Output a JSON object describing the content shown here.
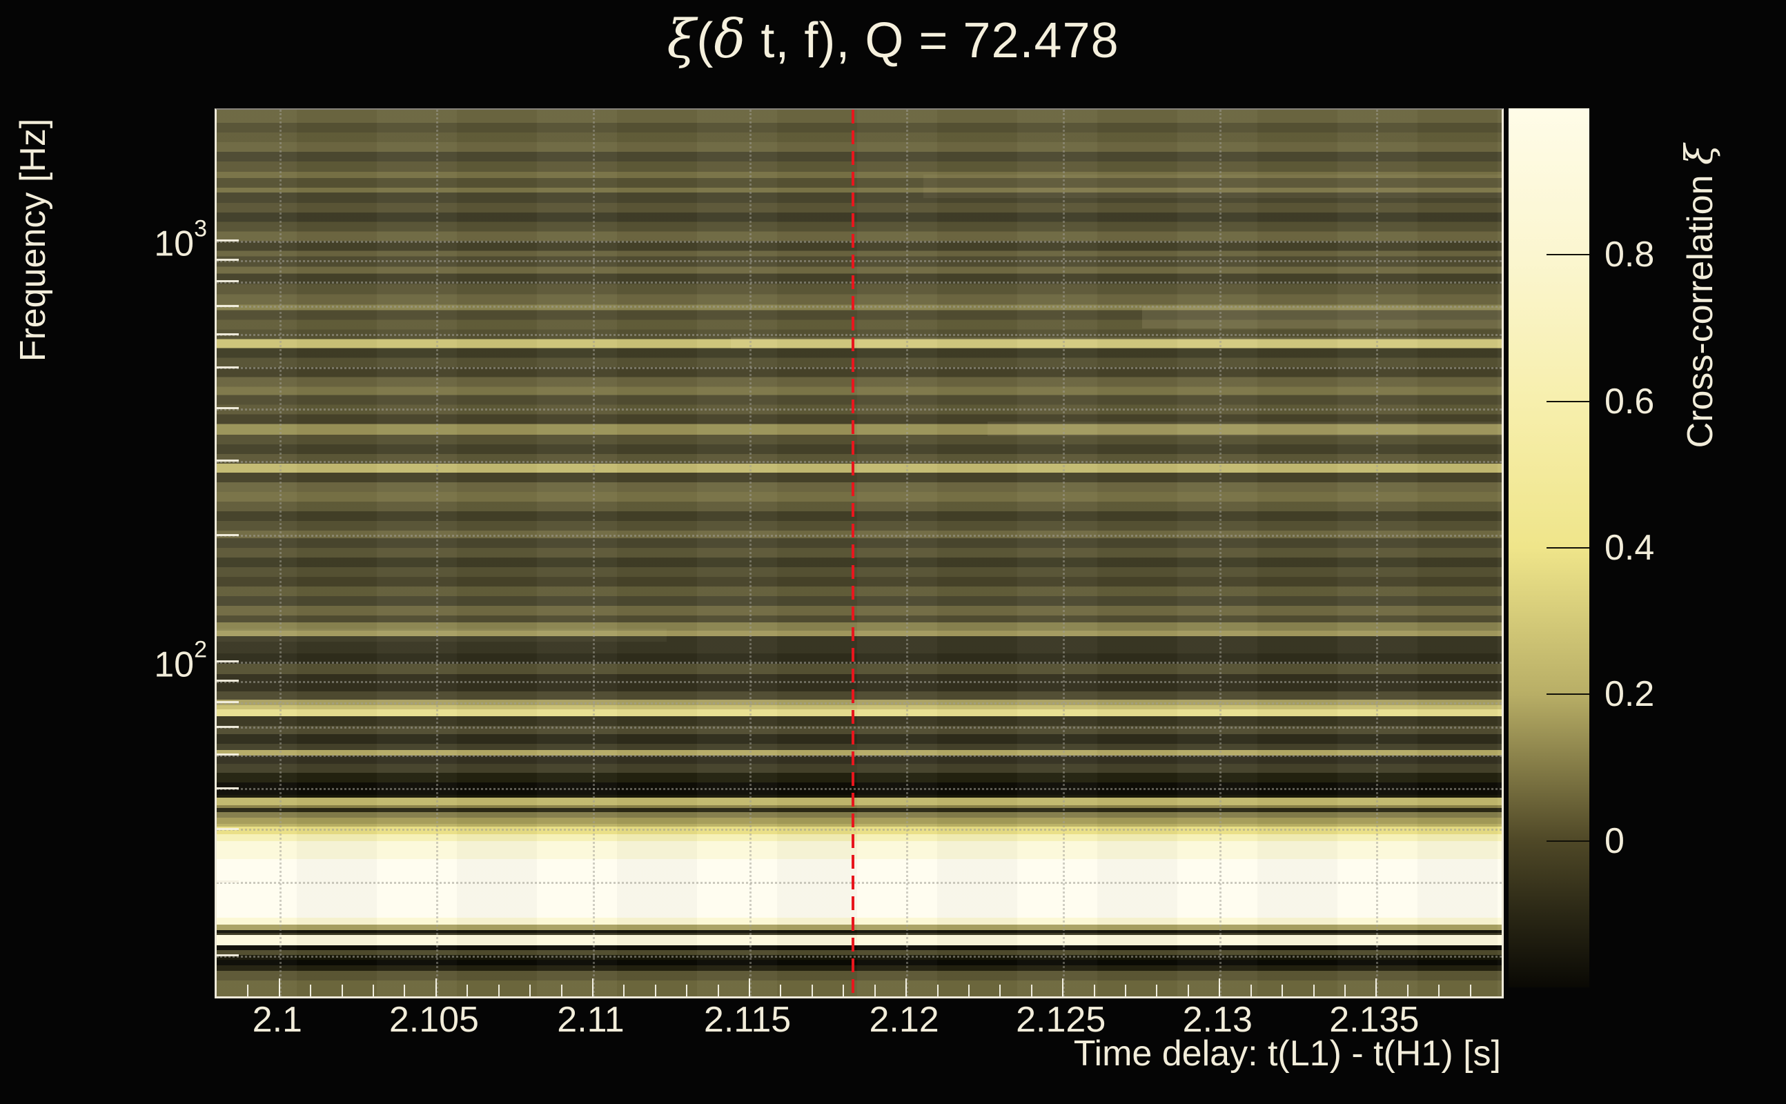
{
  "title": {
    "text": "ξ(δ t, f), Q = 72.478",
    "parts": [
      {
        "text": "ξ",
        "greek": true
      },
      {
        "text": "(",
        "greek": false
      },
      {
        "text": "δ",
        "greek": true
      },
      {
        "text": " t, f), Q = 72.478",
        "greek": false
      }
    ]
  },
  "y_axis": {
    "label": "Frequency [Hz]",
    "scale": "log",
    "ticks": [
      {
        "base": "10",
        "exp": "3",
        "value_hz": 1000
      },
      {
        "base": "10",
        "exp": "2",
        "value_hz": 100
      }
    ]
  },
  "x_axis": {
    "label": "Time delay: t(L1) - t(H1) [s]",
    "ticks": [
      {
        "label": "2.1",
        "value_s": 2.1
      },
      {
        "label": "2.105",
        "value_s": 2.105
      },
      {
        "label": "2.11",
        "value_s": 2.11
      },
      {
        "label": "2.115",
        "value_s": 2.115
      },
      {
        "label": "2.12",
        "value_s": 2.12
      },
      {
        "label": "2.125",
        "value_s": 2.125
      },
      {
        "label": "2.13",
        "value_s": 2.13
      },
      {
        "label": "2.135",
        "value_s": 2.135
      }
    ]
  },
  "colorbar": {
    "label": "Cross-correlation ξ",
    "label_parts": [
      {
        "text": "Cross-correlation ",
        "greek": false
      },
      {
        "text": "ξ",
        "greek": true
      }
    ],
    "range": [
      -0.2,
      1.0
    ],
    "ticks": [
      {
        "label": "0.8",
        "value": 0.8
      },
      {
        "label": "0.6",
        "value": 0.6
      },
      {
        "label": "0.4",
        "value": 0.4
      },
      {
        "label": "0.2",
        "value": 0.2
      },
      {
        "label": "0",
        "value": 0.0
      }
    ],
    "stops": [
      {
        "value": 1.0,
        "color": "#fffce8"
      },
      {
        "value": 0.8,
        "color": "#fbf6d0"
      },
      {
        "value": 0.6,
        "color": "#f7efad"
      },
      {
        "value": 0.4,
        "color": "#efe58a"
      },
      {
        "value": 0.2,
        "color": "#b8ae66"
      },
      {
        "value": 0.0,
        "color": "#4f4827"
      },
      {
        "value": -0.1,
        "color": "#2a2715"
      },
      {
        "value": -0.2,
        "color": "#0a0904"
      }
    ]
  },
  "chart_data": {
    "type": "heatmap",
    "title": "ξ(δ t, f), Q = 72.478",
    "q_value": 72.478,
    "xlabel": "Time delay: t(L1) - t(H1) [s]",
    "ylabel": "Frequency [Hz]",
    "colorbar_label": "Cross-correlation ξ",
    "x_range_s": [
      2.098,
      2.139
    ],
    "x_tick_values_s": [
      2.1,
      2.105,
      2.11,
      2.115,
      2.12,
      2.125,
      2.13,
      2.135
    ],
    "x_minor_step_s": 0.001,
    "y_scale": "log",
    "y_range_hz": [
      16,
      2048
    ],
    "grid_frequencies_hz": [
      20,
      30,
      40,
      50,
      60,
      70,
      80,
      90,
      100,
      200,
      300,
      400,
      500,
      600,
      700,
      800,
      900,
      1000
    ],
    "colorbar_range": [
      -0.2,
      1.0
    ],
    "marker_line": {
      "x_s": 2.1183,
      "style": "dashed",
      "color": "#e8161d"
    },
    "description": "Cross-correlation xi of L1/H1 strain vs time delay and frequency; strong correlation (cream, xi~1) below ~40 Hz, bright horizontal lines near 550 Hz, 280 Hz and 76 Hz, dark anti-correlated bands near 50 Hz and 18-22 Hz; red dashed line marks best-fit time delay 2.1183 s.",
    "bands": [
      [
        0.0,
        "#6c6741"
      ],
      [
        0.0148,
        "#565233"
      ],
      [
        0.0256,
        "#635e3a"
      ],
      [
        0.0365,
        "#6e6842"
      ],
      [
        0.0474,
        "#4c4930"
      ],
      [
        0.0583,
        "#5f5a38"
      ],
      [
        0.0699,
        "#787246"
      ],
      [
        0.0769,
        "#565233"
      ],
      [
        0.0878,
        "#7b7548"
      ],
      [
        0.0932,
        "#4a472e"
      ],
      [
        0.1049,
        "#5b5636"
      ],
      [
        0.1158,
        "#403d28"
      ],
      [
        0.1266,
        "#565233"
      ],
      [
        0.1375,
        "#6e6842"
      ],
      [
        0.1484,
        "#454229"
      ],
      [
        0.1593,
        "#6b6540"
      ],
      [
        0.1655,
        "#514d31"
      ],
      [
        0.1772,
        "#716b43"
      ],
      [
        0.1849,
        "#454229"
      ],
      [
        0.1966,
        "#5d5837"
      ],
      [
        0.2082,
        "#6e6842"
      ],
      [
        0.2199,
        "#8a8450"
      ],
      [
        0.2261,
        "#514d31"
      ],
      [
        0.237,
        "#635e3a"
      ],
      [
        0.2479,
        "#565233"
      ],
      [
        0.2587,
        "#cdc478"
      ],
      [
        0.2688,
        "#403d26"
      ],
      [
        0.2797,
        "#565233"
      ],
      [
        0.2906,
        "#474329"
      ],
      [
        0.3015,
        "#6b6540"
      ],
      [
        0.3124,
        "#7d7749"
      ],
      [
        0.3217,
        "#514d31"
      ],
      [
        0.3326,
        "#5f5a38"
      ],
      [
        0.3434,
        "#474329"
      ],
      [
        0.3543,
        "#9a9358"
      ],
      [
        0.3667,
        "#565233"
      ],
      [
        0.3776,
        "#454229"
      ],
      [
        0.3885,
        "#5d5837"
      ],
      [
        0.3994,
        "#c4bb72"
      ],
      [
        0.4095,
        "#474329"
      ],
      [
        0.4204,
        "#6e6842"
      ],
      [
        0.4312,
        "#787246"
      ],
      [
        0.4421,
        "#615c39"
      ],
      [
        0.453,
        "#434027"
      ],
      [
        0.4639,
        "#565233"
      ],
      [
        0.4747,
        "#716b43"
      ],
      [
        0.4833,
        "#4a472e"
      ],
      [
        0.4942,
        "#5d5837"
      ],
      [
        0.505,
        "#403d26"
      ],
      [
        0.5159,
        "#565233"
      ],
      [
        0.5268,
        "#474329"
      ],
      [
        0.5377,
        "#635e3a"
      ],
      [
        0.5486,
        "#4c4930"
      ],
      [
        0.5594,
        "#716b43"
      ],
      [
        0.5703,
        "#514d31"
      ],
      [
        0.5782,
        "#8a8450"
      ],
      [
        0.5875,
        "#a39a5e"
      ],
      [
        0.5938,
        "#3a3724"
      ],
      [
        0.6132,
        "#2f2d1c"
      ],
      [
        0.6249,
        "#565233"
      ],
      [
        0.6365,
        "#33301e"
      ],
      [
        0.656,
        "#4f4b30"
      ],
      [
        0.6654,
        "#aaa163"
      ],
      [
        0.6716,
        "#c9c073"
      ],
      [
        0.6763,
        "#e8df91"
      ],
      [
        0.6841,
        "#393621"
      ],
      [
        0.695,
        "#514d31"
      ],
      [
        0.7043,
        "#2e2c1b"
      ],
      [
        0.7152,
        "#45422a"
      ],
      [
        0.7222,
        "#b5ab66"
      ],
      [
        0.7284,
        "#343121"
      ],
      [
        0.7377,
        "#45422a"
      ],
      [
        0.7478,
        "#23220f"
      ],
      [
        0.7586,
        "#0e0d06"
      ],
      [
        0.7727,
        "#191808"
      ],
      [
        0.7759,
        "#c2b96e"
      ],
      [
        0.7844,
        "#8a8148"
      ],
      [
        0.7875,
        "#2a2814"
      ],
      [
        0.7922,
        "#847d4b"
      ],
      [
        0.7984,
        "#a59c58"
      ],
      [
        0.8054,
        "#bab164"
      ],
      [
        0.8085,
        "#e9df85"
      ],
      [
        0.8171,
        "#f6f1b6"
      ],
      [
        0.8249,
        "#fcf9da"
      ],
      [
        0.8451,
        "#fffdf0"
      ],
      [
        0.9114,
        "#fcf8d4"
      ],
      [
        0.9192,
        "#a9a162"
      ],
      [
        0.9254,
        "#15140a"
      ],
      [
        0.9285,
        "#3a3720"
      ],
      [
        0.9308,
        "#fdf9dc"
      ],
      [
        0.9425,
        "#0c0b05"
      ],
      [
        0.9479,
        "#4f4b2c"
      ],
      [
        0.9534,
        "#191808"
      ],
      [
        0.9588,
        "#0a0a04"
      ],
      [
        0.965,
        "#23210f"
      ],
      [
        0.9712,
        "#5c5734"
      ],
      [
        0.9821,
        "#6e693e"
      ]
    ],
    "highlight_patches": [
      {
        "x0": 0.72,
        "x1": 1.0,
        "y0": 0.222,
        "y1": 0.247,
        "opacity": 0.1
      },
      {
        "x0": 0.4,
        "x1": 1.0,
        "y0": 0.257,
        "y1": 0.269,
        "opacity": 0.12
      },
      {
        "x0": 0.55,
        "x1": 1.0,
        "y0": 0.073,
        "y1": 0.1,
        "opacity": 0.06
      },
      {
        "x0": 0.6,
        "x1": 1.0,
        "y0": 0.352,
        "y1": 0.368,
        "opacity": 0.07
      },
      {
        "x0": 0.0,
        "x1": 0.35,
        "y0": 0.585,
        "y1": 0.6,
        "opacity": 0.05
      }
    ],
    "grid": {
      "x_major_dotted": true,
      "y_log_minor_dotted": true
    }
  }
}
